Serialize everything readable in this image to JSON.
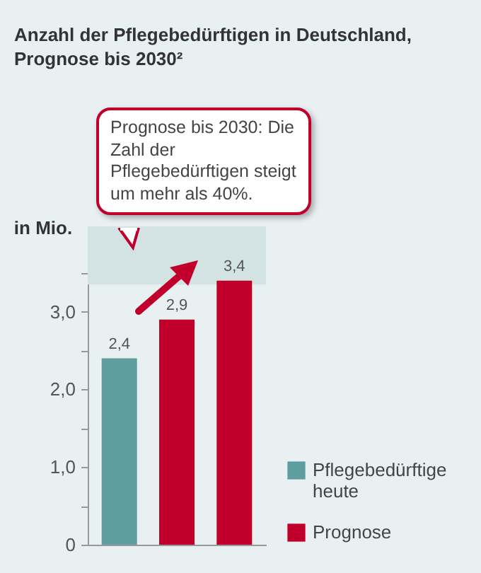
{
  "chart_data": {
    "type": "bar",
    "title": "Anzahl der Pflegebedürftigen in Deutschland, Prognose bis 2030²",
    "ylabel": "in Mio.",
    "annotations": [
      "Prognose bis 2030: Die Zahl der Pflegebedürftigen steigt um mehr als 40%."
    ],
    "categories": [
      null,
      null,
      null
    ],
    "series": [
      {
        "name": "Pflegebedürftige heute",
        "color": "#5f9ea0",
        "values": [
          2.4,
          null,
          null
        ],
        "value_labels": [
          "2,4",
          null,
          null
        ]
      },
      {
        "name": "Prognose",
        "color": "#c0002a",
        "values": [
          null,
          2.9,
          3.4
        ],
        "value_labels": [
          null,
          "2,9",
          "3,4"
        ]
      }
    ],
    "ylim": [
      0,
      4.1
    ],
    "yticks": [
      0,
      {
        "value": 0.5,
        "label": null
      },
      {
        "value": 1,
        "label": "1,0"
      },
      {
        "value": 1.5,
        "label": null
      },
      {
        "value": 2,
        "label": "2,0"
      },
      {
        "value": 2.5,
        "label": null
      },
      {
        "value": 3,
        "label": "3,0"
      },
      {
        "value": 3.5,
        "label": null
      }
    ],
    "bands": [
      {
        "axis": "y",
        "from": 3.35,
        "to": 4.1,
        "color": "#d3e2e3"
      }
    ],
    "grid": false,
    "legend": "right"
  }
}
